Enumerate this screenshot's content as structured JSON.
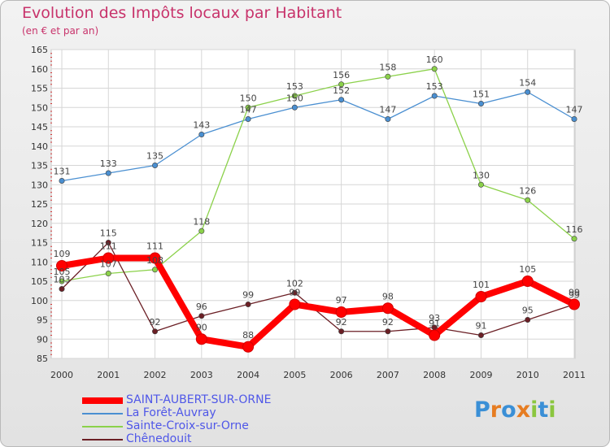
{
  "header": {
    "title": "Evolution des Impôts locaux par Habitant",
    "subtitle": "(en € et par an)"
  },
  "brand": {
    "text": "Proxiti",
    "letters": [
      "P",
      "r",
      "o",
      "x",
      "i",
      "t",
      "i"
    ],
    "colors": [
      "#3a8fd6",
      "#e67c21",
      "#3a8fd6",
      "#e67c21",
      "#8bc63f",
      "#3a8fd6",
      "#8bc63f"
    ]
  },
  "chart_data": {
    "type": "line",
    "x": [
      "2000",
      "2001",
      "2002",
      "2003",
      "2004",
      "2005",
      "2006",
      "2007",
      "2008",
      "2009",
      "2010",
      "2011"
    ],
    "ylim": [
      85,
      165
    ],
    "yticks": [
      85,
      90,
      95,
      100,
      105,
      110,
      115,
      120,
      125,
      130,
      135,
      140,
      145,
      150,
      155,
      160,
      165
    ],
    "grid": true,
    "legend_position": "bottom-left",
    "series": [
      {
        "name": "SAINT-AUBERT-SUR-ORNE",
        "color": "#ff0000",
        "values": [
          109,
          111,
          111,
          90,
          88,
          99,
          97,
          98,
          91,
          101,
          105,
          99
        ],
        "labels": [
          "109",
          "111",
          "111",
          "90",
          "88",
          "99",
          "97",
          "98",
          "91",
          "101",
          "105",
          "99"
        ]
      },
      {
        "name": "La Forêt-Auvray",
        "color": "#4a8fd1",
        "values": [
          131,
          133,
          135,
          143,
          147,
          150,
          152,
          147,
          153,
          151,
          154,
          147
        ],
        "labels": [
          "131",
          "133",
          "135",
          "143",
          "147",
          "150",
          "152",
          "147",
          "153",
          "151",
          "154",
          "147"
        ]
      },
      {
        "name": "Sainte-Croix-sur-Orne",
        "color": "#8bd14a",
        "values": [
          105,
          107,
          108,
          118,
          150,
          153,
          156,
          158,
          160,
          130,
          126,
          116
        ],
        "labels": [
          "105",
          "107",
          "108",
          "118",
          "150",
          "153",
          "156",
          "158",
          "160",
          "130",
          "126",
          "116"
        ]
      },
      {
        "name": "Chênedouit",
        "color": "#6b1f25",
        "values": [
          103,
          115,
          92,
          96,
          99,
          102,
          92,
          92,
          93,
          91,
          95,
          99
        ],
        "labels": [
          "103",
          "115",
          "92",
          "96",
          "99",
          "102",
          "92",
          "92",
          "93",
          "91",
          "95",
          "99"
        ]
      }
    ]
  }
}
